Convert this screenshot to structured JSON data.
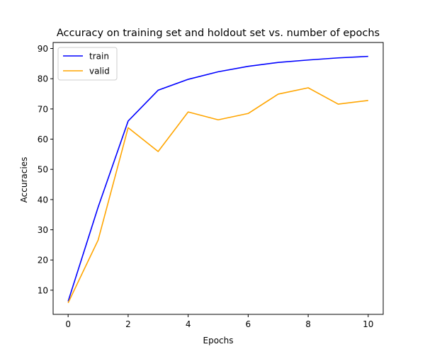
{
  "chart_data": {
    "type": "line",
    "title": "Accuracy on training set and holdout set vs. number of epochs",
    "xlabel": "Epochs",
    "ylabel": "Accuracies",
    "x": [
      0,
      1,
      2,
      3,
      4,
      5,
      6,
      7,
      8,
      9,
      10
    ],
    "xlim": [
      -0.5,
      10.5
    ],
    "ylim": [
      2,
      92
    ],
    "xticks": [
      0,
      2,
      4,
      6,
      8,
      10
    ],
    "yticks": [
      10,
      20,
      30,
      40,
      50,
      60,
      70,
      80,
      90
    ],
    "grid": false,
    "legend_position": "top-left",
    "series": [
      {
        "name": "train",
        "color": "#0000ff",
        "values": [
          6.3,
          37.5,
          66.0,
          76.2,
          79.8,
          82.3,
          84.1,
          85.4,
          86.2,
          86.9,
          87.4
        ]
      },
      {
        "name": "valid",
        "color": "#ffa500",
        "values": [
          5.8,
          26.6,
          63.8,
          55.9,
          69.0,
          66.4,
          68.5,
          74.9,
          77.0,
          71.6,
          72.8
        ]
      }
    ]
  }
}
